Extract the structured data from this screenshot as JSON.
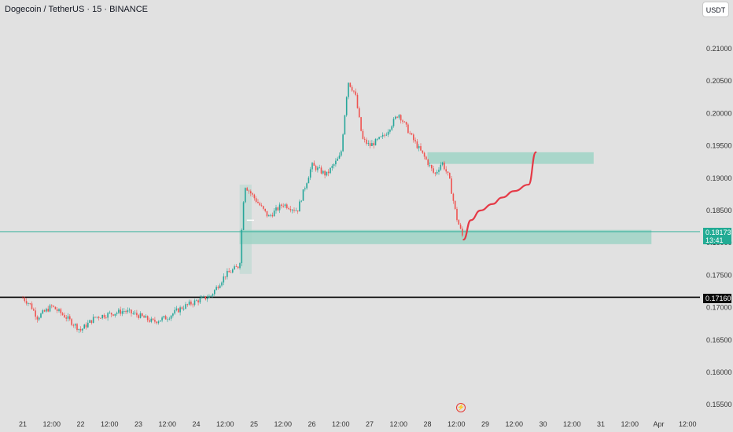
{
  "header": {
    "title": "Dogecoin / TetherUS · 15 · BINANCE",
    "currency_button": "USDT"
  },
  "price_tags": {
    "current_price": "0.18173",
    "countdown": "13:41",
    "level_price": "0.17160"
  },
  "icons": {
    "lightning": "lightning-icon"
  },
  "colors": {
    "background": "#e1e1e1",
    "up_candle": "#26a69a",
    "down_candle": "#ef5350",
    "zone_fill": "#9fd3c6",
    "projection": "#e53946",
    "level_line": "#000000",
    "current_price_line": "#22ab94"
  },
  "chart_data": {
    "type": "candlestick",
    "title": "Dogecoin / TetherUS · 15 · BINANCE",
    "x_axis_labels": [
      "21",
      "12:00",
      "22",
      "12:00",
      "23",
      "12:00",
      "24",
      "12:00",
      "25",
      "12:00",
      "26",
      "12:00",
      "27",
      "12:00",
      "28",
      "12:00",
      "29",
      "12:00",
      "30",
      "12:00",
      "31",
      "12:00",
      "Apr",
      "12:00"
    ],
    "y_axis_labels": [
      "0.21000",
      "0.20500",
      "0.20000",
      "0.19500",
      "0.19000",
      "0.18500",
      "0.18000",
      "0.17500",
      "0.17000",
      "0.16500",
      "0.16000",
      "0.15500"
    ],
    "ylim": [
      0.154,
      0.2165
    ],
    "price_path": [
      {
        "t": "21 00:00",
        "p": 0.1715
      },
      {
        "t": "21 03:00",
        "p": 0.1705
      },
      {
        "t": "21 06:00",
        "p": 0.1685
      },
      {
        "t": "21 12:00",
        "p": 0.1702
      },
      {
        "t": "21 18:00",
        "p": 0.1685
      },
      {
        "t": "22 00:00",
        "p": 0.1665
      },
      {
        "t": "22 06:00",
        "p": 0.1685
      },
      {
        "t": "22 12:00",
        "p": 0.169
      },
      {
        "t": "22 18:00",
        "p": 0.1695
      },
      {
        "t": "23 00:00",
        "p": 0.1688
      },
      {
        "t": "23 06:00",
        "p": 0.1678
      },
      {
        "t": "23 12:00",
        "p": 0.1685
      },
      {
        "t": "23 18:00",
        "p": 0.17
      },
      {
        "t": "24 00:00",
        "p": 0.171
      },
      {
        "t": "24 06:00",
        "p": 0.1718
      },
      {
        "t": "24 12:00",
        "p": 0.175
      },
      {
        "t": "24 18:00",
        "p": 0.1765
      },
      {
        "t": "24 20:00",
        "p": 0.189
      },
      {
        "t": "25 00:00",
        "p": 0.187
      },
      {
        "t": "25 06:00",
        "p": 0.184
      },
      {
        "t": "25 12:00",
        "p": 0.186
      },
      {
        "t": "25 18:00",
        "p": 0.185
      },
      {
        "t": "26 00:00",
        "p": 0.192
      },
      {
        "t": "26 06:00",
        "p": 0.1905
      },
      {
        "t": "26 12:00",
        "p": 0.1935
      },
      {
        "t": "26 15:00",
        "p": 0.205
      },
      {
        "t": "26 18:00",
        "p": 0.203
      },
      {
        "t": "26 21:00",
        "p": 0.196
      },
      {
        "t": "27 00:00",
        "p": 0.195
      },
      {
        "t": "27 06:00",
        "p": 0.1965
      },
      {
        "t": "27 12:00",
        "p": 0.2
      },
      {
        "t": "27 18:00",
        "p": 0.196
      },
      {
        "t": "28 00:00",
        "p": 0.1925
      },
      {
        "t": "28 03:00",
        "p": 0.1905
      },
      {
        "t": "28 06:00",
        "p": 0.1925
      },
      {
        "t": "28 09:00",
        "p": 0.19
      },
      {
        "t": "28 12:00",
        "p": 0.184
      },
      {
        "t": "28 15:00",
        "p": 0.1805
      }
    ],
    "zones": [
      {
        "name": "upper-resistance-zone",
        "from": "28 00:00",
        "to": "30 21:00",
        "top": 0.194,
        "bottom": 0.1922
      },
      {
        "name": "lower-support-zone",
        "from": "24 18:00",
        "to": "31 21:00",
        "top": 0.182,
        "bottom": 0.1798
      }
    ],
    "horizontal_levels": [
      {
        "name": "key-level",
        "price": 0.1716
      },
      {
        "name": "current-price",
        "price": 0.18173
      }
    ],
    "projection_path": [
      {
        "t": "28 15:00",
        "p": 0.1805
      },
      {
        "t": "28 18:00",
        "p": 0.1835
      },
      {
        "t": "28 22:00",
        "p": 0.185
      },
      {
        "t": "29 03:00",
        "p": 0.186
      },
      {
        "t": "29 07:00",
        "p": 0.187
      },
      {
        "t": "29 12:00",
        "p": 0.188
      },
      {
        "t": "29 18:00",
        "p": 0.189
      },
      {
        "t": "29 21:00",
        "p": 0.194
      }
    ]
  }
}
